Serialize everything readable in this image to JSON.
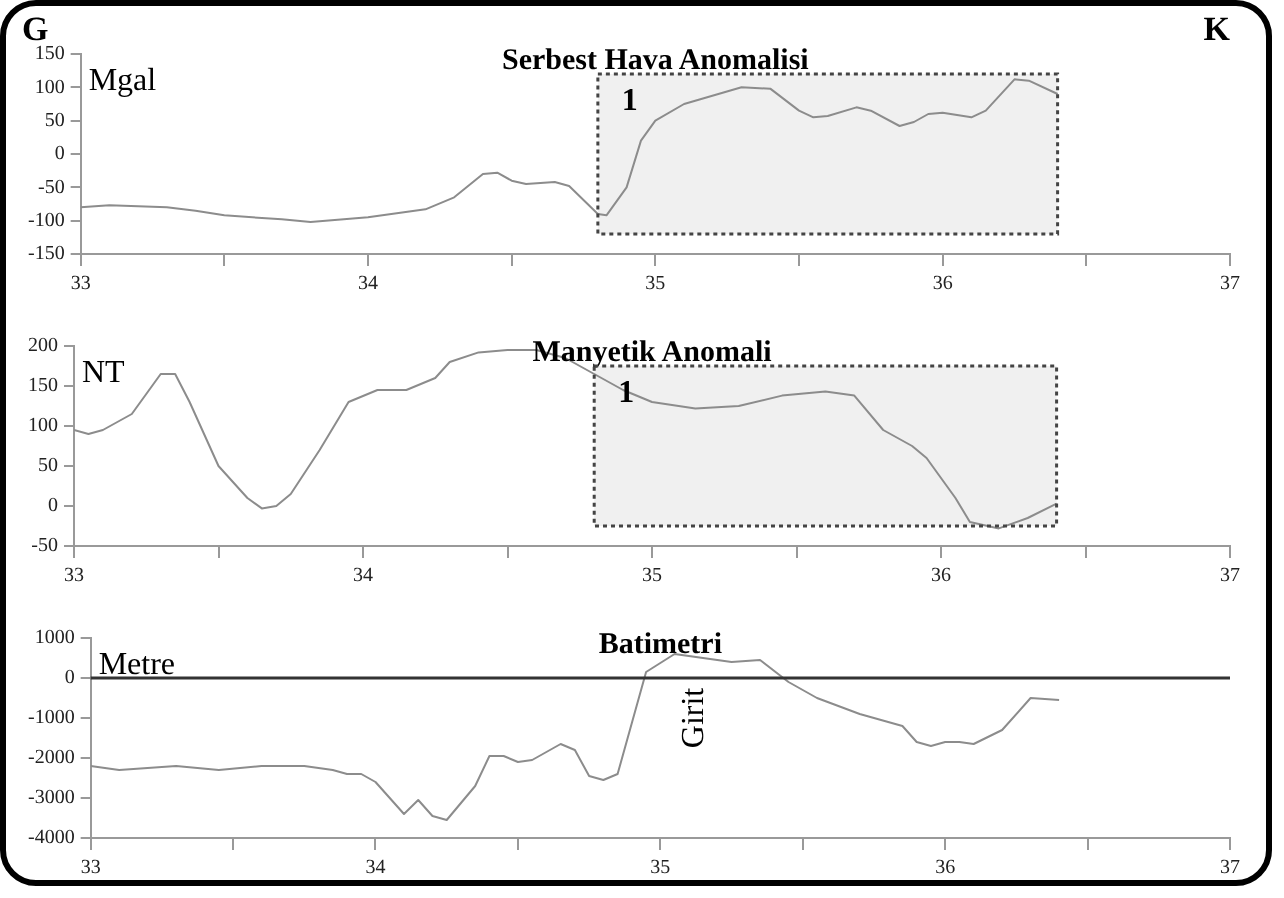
{
  "chart_data": [
    {
      "type": "line",
      "title": "Serbest Hava Anomalisi",
      "ylabel": "Mgal",
      "annotations": [
        "G",
        "K"
      ],
      "x": [
        33.0,
        33.1,
        33.3,
        33.4,
        33.5,
        33.7,
        33.8,
        34.0,
        34.2,
        34.3,
        34.4,
        34.45,
        34.5,
        34.55,
        34.65,
        34.7,
        34.8,
        34.83,
        34.9,
        34.95,
        35.0,
        35.1,
        35.3,
        35.4,
        35.5,
        35.55,
        35.6,
        35.7,
        35.75,
        35.85,
        35.9,
        35.95,
        36.0,
        36.1,
        36.15,
        36.25,
        36.3,
        36.4
      ],
      "series": [
        {
          "color": "#8c8c8c",
          "values": [
            -80,
            -77,
            -80,
            -85,
            -92,
            -98,
            -102,
            -95,
            -83,
            -65,
            -30,
            -28,
            -40,
            -45,
            -42,
            -48,
            -90,
            -92,
            -50,
            20,
            50,
            75,
            100,
            98,
            65,
            55,
            57,
            70,
            65,
            42,
            48,
            60,
            62,
            55,
            65,
            112,
            110,
            90
          ]
        }
      ],
      "xlim": [
        33,
        37
      ],
      "xticks": [
        33,
        {
          "value": 33.5,
          "label": null
        },
        34,
        {
          "value": 34.5,
          "label": null
        },
        35,
        {
          "value": 35.5,
          "label": null
        },
        36,
        {
          "value": 36.5,
          "label": null
        },
        37
      ],
      "ylim": [
        -150,
        150
      ],
      "yticks": [
        -150,
        -100,
        -50,
        0,
        50,
        100,
        150
      ],
      "bands": [
        {
          "axis": "x",
          "from": 34.8,
          "to": 36.4,
          "label": "1",
          "color": "#f0f0f0"
        }
      ],
      "grid": false,
      "legend": false,
      "marker": "none",
      "line_style": "solid"
    },
    {
      "type": "line",
      "title": "Manyetik Anomali",
      "ylabel": "NT",
      "x": [
        33.0,
        33.05,
        33.1,
        33.2,
        33.3,
        33.35,
        33.4,
        33.5,
        33.6,
        33.65,
        33.7,
        33.75,
        33.85,
        33.95,
        34.05,
        34.15,
        34.25,
        34.3,
        34.4,
        34.5,
        34.6,
        34.7,
        34.8,
        34.9,
        35.0,
        35.15,
        35.3,
        35.45,
        35.6,
        35.7,
        35.8,
        35.9,
        35.95,
        36.05,
        36.1,
        36.2,
        36.3,
        36.4
      ],
      "series": [
        {
          "color": "#8c8c8c",
          "values": [
            95,
            90,
            95,
            115,
            165,
            165,
            130,
            50,
            10,
            -3,
            0,
            15,
            70,
            130,
            145,
            145,
            160,
            180,
            192,
            195,
            195,
            185,
            165,
            145,
            130,
            122,
            125,
            138,
            143,
            138,
            95,
            75,
            60,
            10,
            -20,
            -28,
            -15,
            3
          ]
        }
      ],
      "xlim": [
        33,
        37
      ],
      "xticks": [
        33,
        {
          "value": 33.5,
          "label": null
        },
        34,
        {
          "value": 34.5,
          "label": null
        },
        35,
        {
          "value": 35.5,
          "label": null
        },
        36,
        {
          "value": 36.5,
          "label": null
        },
        37
      ],
      "ylim": [
        -50,
        200
      ],
      "yticks": [
        -50,
        0,
        50,
        100,
        150,
        200
      ],
      "bands": [
        {
          "axis": "x",
          "from": 34.8,
          "to": 36.4,
          "label": "1",
          "color": "#f0f0f0"
        }
      ],
      "grid": false,
      "legend": false,
      "marker": "none",
      "line_style": "solid"
    },
    {
      "type": "line",
      "title": "Batimetri",
      "ylabel": "Metre",
      "annotations": [
        "Girit"
      ],
      "x": [
        33.0,
        33.1,
        33.3,
        33.45,
        33.6,
        33.75,
        33.85,
        33.9,
        33.95,
        34.0,
        34.1,
        34.15,
        34.2,
        34.25,
        34.35,
        34.4,
        34.45,
        34.5,
        34.55,
        34.65,
        34.7,
        34.75,
        34.8,
        34.85,
        34.95,
        35.05,
        35.15,
        35.25,
        35.35,
        35.45,
        35.55,
        35.7,
        35.85,
        35.9,
        35.95,
        36.0,
        36.05,
        36.1,
        36.2,
        36.3,
        36.4
      ],
      "series": [
        {
          "color": "#8c8c8c",
          "values": [
            -2200,
            -2300,
            -2200,
            -2300,
            -2200,
            -2200,
            -2300,
            -2400,
            -2400,
            -2600,
            -3400,
            -3050,
            -3450,
            -3550,
            -2700,
            -1950,
            -1950,
            -2100,
            -2050,
            -1650,
            -1800,
            -2450,
            -2550,
            -2400,
            150,
            600,
            500,
            400,
            450,
            -100,
            -500,
            -900,
            -1200,
            -1600,
            -1700,
            -1600,
            -1600,
            -1650,
            -1300,
            -500,
            -550
          ]
        }
      ],
      "xlim": [
        33,
        37
      ],
      "xticks": [
        33,
        {
          "value": 33.5,
          "label": null
        },
        34,
        {
          "value": 34.5,
          "label": null
        },
        35,
        {
          "value": 35.5,
          "label": null
        },
        36,
        {
          "value": 36.5,
          "label": null
        },
        37
      ],
      "ylim": [
        -4000,
        1000
      ],
      "yticks": [
        -4000,
        -3000,
        -2000,
        -1000,
        0,
        1000
      ],
      "ref_lines": [
        {
          "axis": "y",
          "value": 0,
          "color": "#333333"
        }
      ],
      "grid": false,
      "legend": false,
      "marker": "none",
      "line_style": "solid"
    }
  ]
}
